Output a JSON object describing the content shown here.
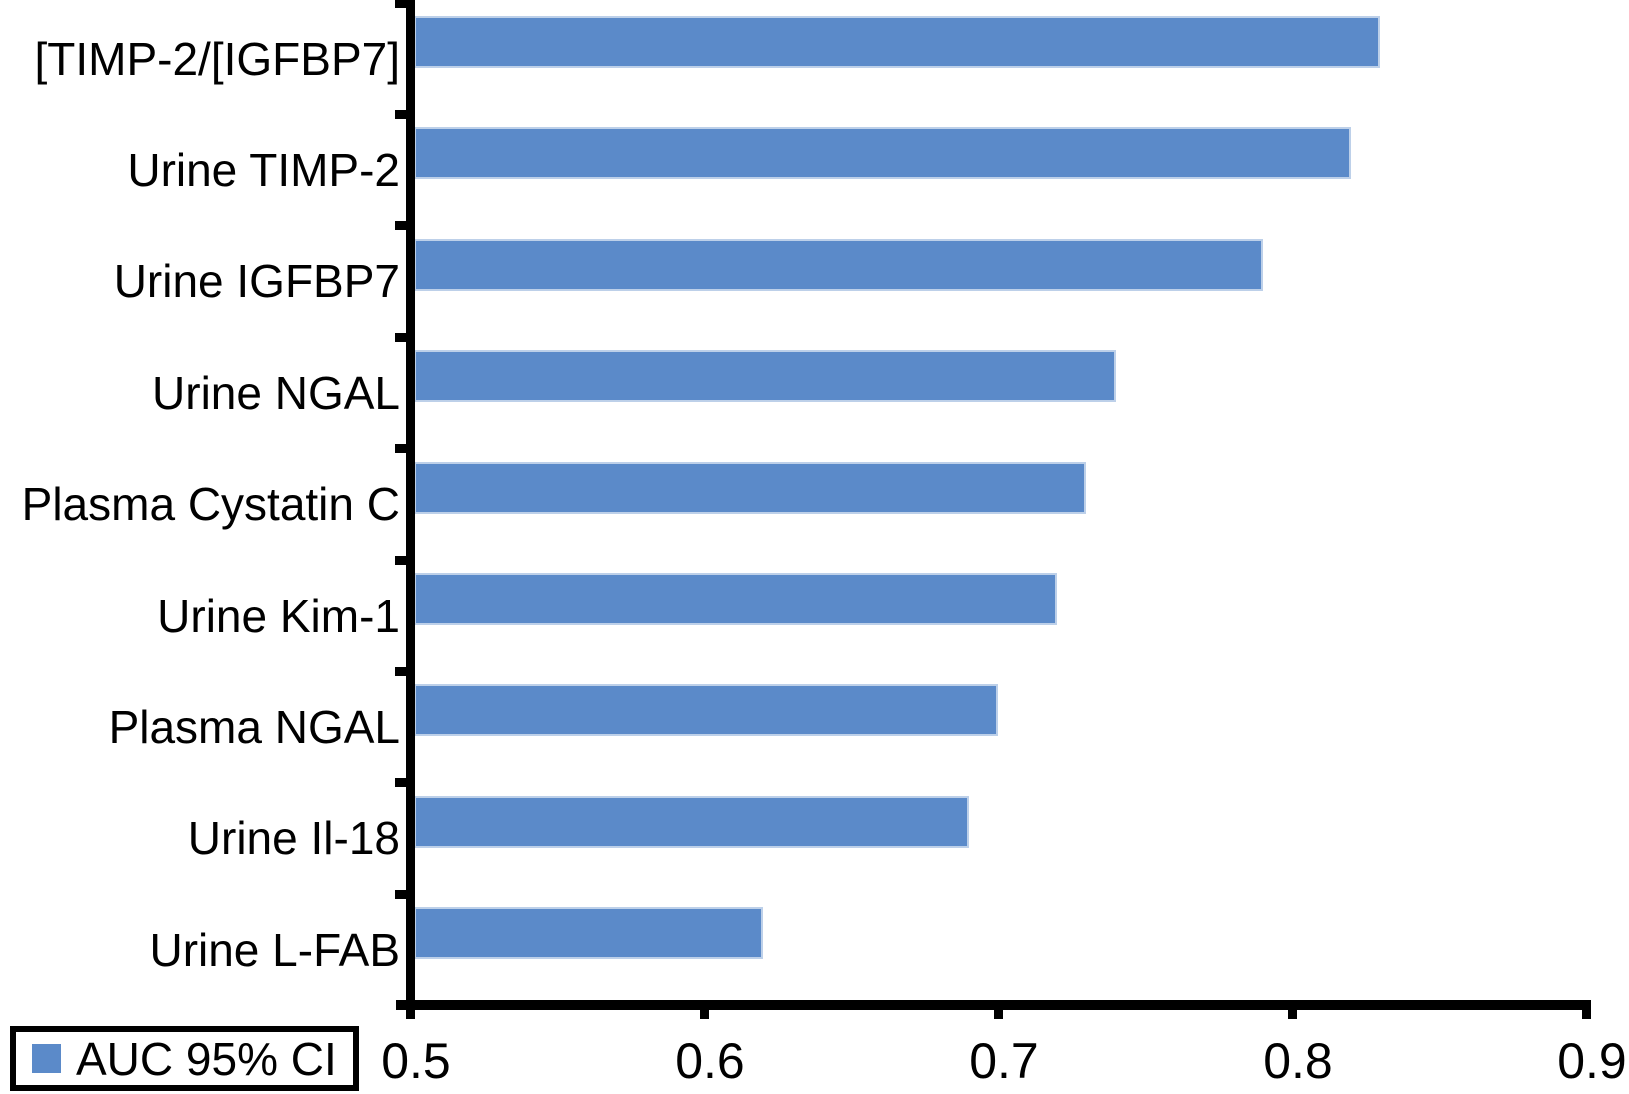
{
  "chart_data": {
    "type": "bar",
    "orientation": "horizontal",
    "title": "",
    "categories": [
      "[TIMP-2/[IGFBP7]",
      "Urine TIMP-2",
      "Urine IGFBP7",
      "Urine NGAL",
      "Plasma Cystatin C",
      "Urine Kim-1",
      "Plasma NGAL",
      "Urine Il-18",
      "Urine L-FAB"
    ],
    "values": [
      0.83,
      0.82,
      0.79,
      0.74,
      0.73,
      0.72,
      0.7,
      0.69,
      0.62
    ],
    "xlim": [
      0.5,
      0.9
    ],
    "x_ticks": [
      "0.5",
      "0.6",
      "0.7",
      "0.8",
      "0.9"
    ],
    "ylabel": "",
    "xlabel": "",
    "grid": false,
    "legend": "AUC 95% CI",
    "legend_position": "bottom-left",
    "bar_color": "#5b8ac9",
    "axis_color": "#000000"
  }
}
